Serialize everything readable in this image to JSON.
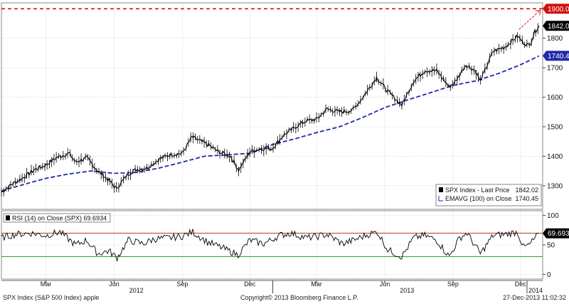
{
  "footer": {
    "left": "SPX Index (S&P 500 Index) apple",
    "center": "Copyright© 2013 Bloomberg Finance L.P.",
    "right": "27-Dec-2013 11:02:32"
  },
  "colors": {
    "price": "#000000",
    "ema": "#1f2aa8",
    "target_line": "#d01010",
    "rsi": "#000000",
    "rsi_upper": "#c0392b",
    "rsi_lower": "#2e9e3e",
    "grid": "#b0b0b0"
  },
  "chart_data": [
    {
      "type": "line",
      "title": "",
      "x_axis": {
        "range": [
          "2012-01-01",
          "2013-12-31"
        ],
        "tick_labels": [
          "Mar",
          "Jun",
          "Sep",
          "Dec",
          "Mar",
          "Jun",
          "Sep",
          "Dec"
        ],
        "tick_dates": [
          "2012-03-01",
          "2012-06-01",
          "2012-09-01",
          "2012-12-01",
          "2013-03-01",
          "2013-06-01",
          "2013-09-01",
          "2013-12-01"
        ],
        "year_labels": [
          "2012",
          "2013",
          "2014"
        ],
        "year_label_dates": [
          "2012-07-01",
          "2013-07-01",
          "2014-01-01"
        ]
      },
      "y_axis": {
        "range": [
          1220,
          1920
        ],
        "ticks": [
          1300,
          1400,
          1500,
          1600,
          1700,
          1800
        ],
        "position": "right",
        "grid": true
      },
      "legend": {
        "placement": "bottom-right",
        "entries": [
          {
            "label": "SPX Index - Last Price",
            "value": "1842.02"
          },
          {
            "label": "EMAVG (100) on Close",
            "value": "1740.45"
          }
        ]
      },
      "reference_line": {
        "value": 1900,
        "label": "1900.00"
      },
      "value_tags": [
        {
          "value": 1842.02,
          "label": "1842.02"
        },
        {
          "value": 1740.45,
          "label": "1740.45"
        }
      ],
      "series": [
        {
          "name": "SPX Index - Last Price",
          "x": [
            "2012-01-01",
            "2012-01-15",
            "2012-02-01",
            "2012-02-15",
            "2012-03-01",
            "2012-03-15",
            "2012-04-01",
            "2012-04-10",
            "2012-04-25",
            "2012-05-10",
            "2012-05-25",
            "2012-06-04",
            "2012-06-20",
            "2012-07-01",
            "2012-07-15",
            "2012-08-01",
            "2012-08-15",
            "2012-09-01",
            "2012-09-14",
            "2012-10-05",
            "2012-10-20",
            "2012-11-05",
            "2012-11-16",
            "2012-12-01",
            "2012-12-15",
            "2012-12-31",
            "2013-01-15",
            "2013-02-01",
            "2013-02-15",
            "2013-03-01",
            "2013-03-15",
            "2013-04-01",
            "2013-04-18",
            "2013-05-01",
            "2013-05-21",
            "2013-06-05",
            "2013-06-24",
            "2013-07-10",
            "2013-07-25",
            "2013-08-10",
            "2013-08-27",
            "2013-09-05",
            "2013-09-18",
            "2013-10-01",
            "2013-10-08",
            "2013-10-25",
            "2013-11-10",
            "2013-11-27",
            "2013-12-05",
            "2013-12-13",
            "2013-12-20",
            "2013-12-26"
          ],
          "y": [
            1278,
            1305,
            1330,
            1355,
            1370,
            1395,
            1410,
            1380,
            1395,
            1350,
            1318,
            1290,
            1340,
            1355,
            1360,
            1390,
            1405,
            1410,
            1465,
            1440,
            1415,
            1400,
            1353,
            1415,
            1425,
            1426,
            1470,
            1500,
            1520,
            1525,
            1560,
            1550,
            1555,
            1595,
            1667,
            1620,
            1573,
            1655,
            1690,
            1690,
            1635,
            1655,
            1710,
            1690,
            1655,
            1755,
            1770,
            1807,
            1785,
            1775,
            1820,
            1842
          ]
        },
        {
          "name": "EMAVG (100) on Close",
          "x": [
            "2012-01-01",
            "2012-02-01",
            "2012-03-01",
            "2012-04-01",
            "2012-05-01",
            "2012-06-01",
            "2012-07-01",
            "2012-08-01",
            "2012-09-01",
            "2012-10-01",
            "2012-11-01",
            "2012-12-01",
            "2013-01-01",
            "2013-02-01",
            "2013-03-01",
            "2013-04-01",
            "2013-05-01",
            "2013-06-01",
            "2013-07-01",
            "2013-08-01",
            "2013-09-01",
            "2013-10-01",
            "2013-11-01",
            "2013-12-01",
            "2013-12-26"
          ],
          "y": [
            1282,
            1305,
            1325,
            1340,
            1350,
            1342,
            1345,
            1360,
            1380,
            1400,
            1405,
            1410,
            1440,
            1460,
            1480,
            1500,
            1530,
            1565,
            1590,
            1615,
            1640,
            1655,
            1680,
            1710,
            1740
          ]
        }
      ]
    },
    {
      "type": "line",
      "title": "",
      "y_axis": {
        "range": [
          -8,
          108
        ],
        "ticks": [
          0,
          50,
          100
        ],
        "position": "right",
        "grid": true
      },
      "legend": {
        "placement": "top-left",
        "entries": [
          {
            "label": "RSI (14) on Close (SPX)",
            "value": "69.6934"
          }
        ]
      },
      "levels": [
        70,
        30
      ],
      "value_tags": [
        {
          "value": 69.69,
          "label": "69.6934"
        }
      ],
      "series": [
        {
          "name": "RSI (14) on Close (SPX)",
          "x": [
            "2012-01-01",
            "2012-01-20",
            "2012-02-10",
            "2012-03-01",
            "2012-03-20",
            "2012-04-10",
            "2012-04-25",
            "2012-05-10",
            "2012-05-25",
            "2012-06-05",
            "2012-06-20",
            "2012-07-10",
            "2012-07-25",
            "2012-08-15",
            "2012-09-01",
            "2012-09-15",
            "2012-10-05",
            "2012-10-25",
            "2012-11-15",
            "2012-12-01",
            "2012-12-20",
            "2013-01-10",
            "2013-01-25",
            "2013-02-15",
            "2013-03-01",
            "2013-03-15",
            "2013-04-05",
            "2013-04-20",
            "2013-05-10",
            "2013-05-22",
            "2013-06-05",
            "2013-06-24",
            "2013-07-10",
            "2013-07-25",
            "2013-08-10",
            "2013-08-27",
            "2013-09-10",
            "2013-09-20",
            "2013-10-08",
            "2013-10-25",
            "2013-11-10",
            "2013-11-27",
            "2013-12-05",
            "2013-12-13",
            "2013-12-26"
          ],
          "y": [
            62,
            68,
            70,
            66,
            72,
            50,
            58,
            35,
            40,
            28,
            58,
            52,
            60,
            62,
            65,
            72,
            55,
            45,
            33,
            58,
            52,
            66,
            70,
            62,
            64,
            68,
            52,
            58,
            68,
            72,
            42,
            30,
            62,
            66,
            58,
            30,
            62,
            70,
            35,
            66,
            68,
            72,
            46,
            50,
            69.69
          ]
        }
      ]
    }
  ]
}
